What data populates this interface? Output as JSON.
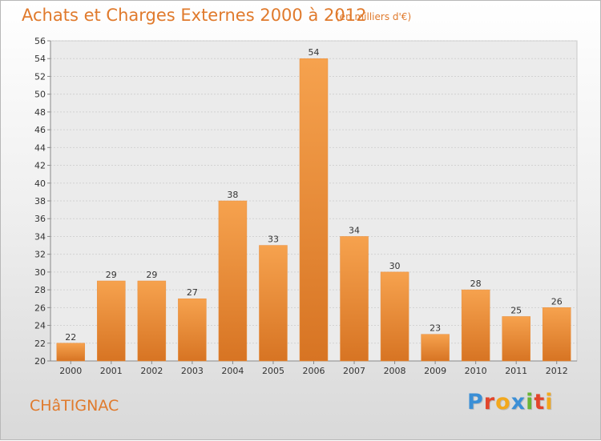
{
  "header": {
    "title": "Achats et Charges Externes 2000 à 2012",
    "subtitle": "(en milliers d'€)"
  },
  "footer": {
    "commune": "CHâTIGNAC",
    "brand_letters": [
      "P",
      "r",
      "o",
      "x",
      "i",
      "t",
      "i"
    ],
    "brand_colors": [
      "#3b8fd6",
      "#e2452b",
      "#f2a81d",
      "#3b8fd6",
      "#69b535",
      "#e2452b",
      "#f2a81d"
    ]
  },
  "chart_data": {
    "type": "bar",
    "categories": [
      "2000",
      "2001",
      "2002",
      "2003",
      "2004",
      "2005",
      "2006",
      "2007",
      "2008",
      "2009",
      "2010",
      "2011",
      "2012"
    ],
    "values": [
      22,
      29,
      29,
      27,
      38,
      33,
      54,
      34,
      30,
      23,
      28,
      25,
      26
    ],
    "ylim": [
      20,
      56
    ],
    "ytick_step": 2,
    "grid": true,
    "bar_color": "#f0963c",
    "bar_color_dark": "#d9772a"
  }
}
